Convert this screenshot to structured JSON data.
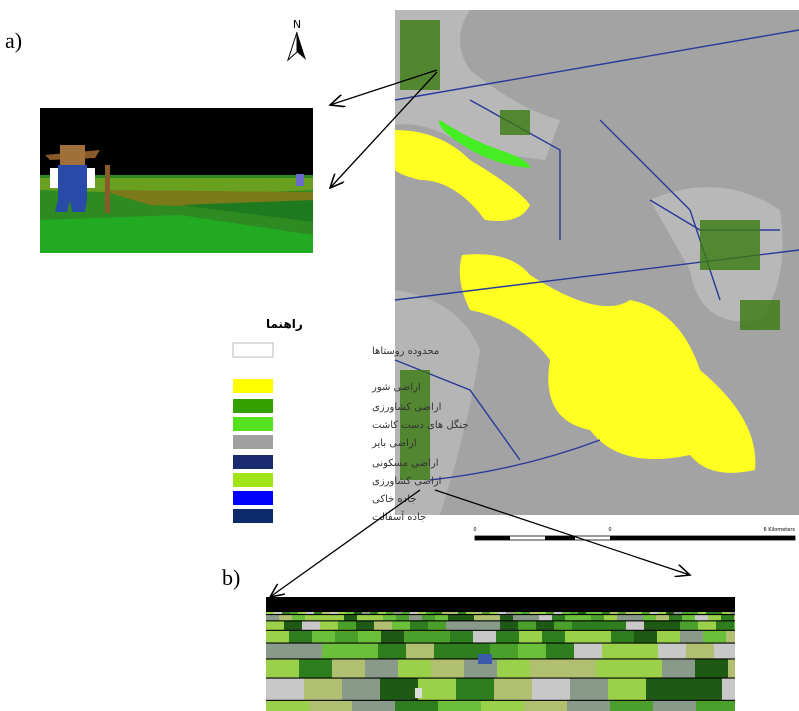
{
  "labels": {
    "a": "a)",
    "b": "b)",
    "north": "N"
  },
  "legend": {
    "title": "راهنما",
    "items": [
      {
        "label": "محدوده روستاها",
        "color": "#ffffff"
      },
      {
        "label": "اراضی شور",
        "color": "#ffff00"
      },
      {
        "label": "اراضی کشاورزی",
        "color": "#33a000"
      },
      {
        "label": "جنگل های دست کاشت",
        "color": "#55e020"
      },
      {
        "label": "اراضی بایر",
        "color": "#a0a0a0"
      },
      {
        "label": "اراضی مسکونی",
        "color": "#1a2a6e"
      },
      {
        "label": "اراضی کشاورزی",
        "color": "#a0e619"
      },
      {
        "label": "جاده خاکی",
        "color": "#0000ff"
      },
      {
        "label": "جاده آسفالت",
        "color": "#0d2a6b"
      }
    ]
  },
  "scale_bar": {
    "labels": [
      "0",
      "0",
      "6 Kilometers"
    ]
  }
}
